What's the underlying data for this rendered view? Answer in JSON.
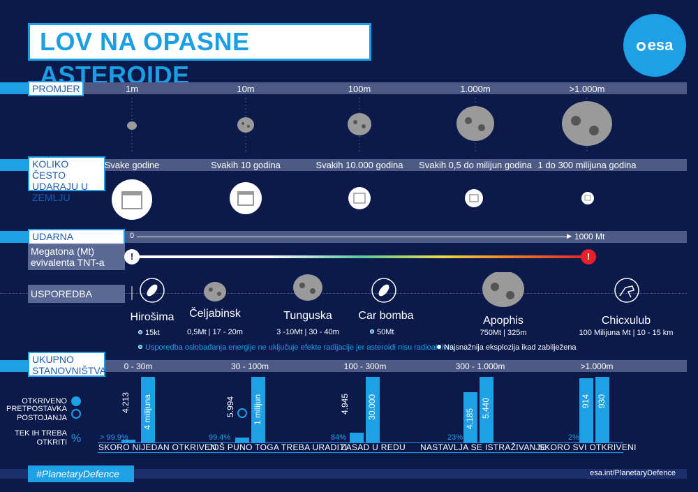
{
  "title": "LOV NA OPASNE ASTEROIDE",
  "logo": "esa",
  "promjer": {
    "label": "PROMJER",
    "sizes": [
      "1m",
      "10m",
      "100m",
      "1.000m",
      ">1.000m"
    ]
  },
  "frequency": {
    "label": "KOLIKO ČESTO UDARAJU U ZEMLJU",
    "items": [
      "Svake godine",
      "Svakih 10 godina",
      "Svakih 10.000 godina",
      "Svakih 0,5 do milijun godina",
      "1 do 300 milijuna godina"
    ]
  },
  "energy": {
    "label": "UDARNA ENERGIJA",
    "start": "0",
    "end": "1000 Mt",
    "sublabel": "Megatona (Mt) evivalenta TNT-a"
  },
  "comparison": {
    "label": "USPOREDBA",
    "items": [
      {
        "name": "Hirošima",
        "sub": "15kt",
        "dot": "blue"
      },
      {
        "name": "Čeljabinsk",
        "sub": "0,5Mt | 17 - 20m",
        "dot": ""
      },
      {
        "name": "Tunguska",
        "sub": "3 -10Mt | 30 - 40m",
        "dot": ""
      },
      {
        "name": "Car bomba",
        "sub": "50Mt",
        "dot": "blue"
      },
      {
        "name": "Apophis",
        "sub": "750Mt | 325m",
        "dot": ""
      },
      {
        "name": "Chicxulub",
        "sub": "100 Milijuna Mt | 10 - 15 km",
        "dot": ""
      }
    ],
    "note_blue": "Usporedba oslobađanja energije ne uključuje efekte radijacije jer asteroidi nisu radioaktivni",
    "note_white": "Najsnažnija eksplozija ikad zabilježena"
  },
  "population": {
    "label": "UKUPNO STANOVNIŠTVA",
    "row_labels": {
      "discovered": "OTKRIVENO",
      "estimated": "PRETPOSTAVKA POSTOJANJA",
      "remaining": "TEK IH TREBA OTKRITI",
      "pct_sign": "%"
    },
    "categories": [
      {
        "range": "0 - 30m",
        "discovered": "4.213",
        "estimated": "4 milijuna",
        "pct": "> 99.9%",
        "status": "SKORO NIJEDAN OTKRIVEN",
        "d_frac": 0.05,
        "e_frac": 1.0
      },
      {
        "range": "30 - 100m",
        "discovered": "5.994",
        "estimated": "1 milijun",
        "pct": "99.4%",
        "status": "JOŠ PUNO TOGA TREBA URADITI",
        "d_frac": 0.08,
        "e_frac": 1.0
      },
      {
        "range": "100 - 300m",
        "discovered": "4.945",
        "estimated": "30.000",
        "pct": "84%",
        "status": "ZASAD U REDU",
        "d_frac": 0.16,
        "e_frac": 1.0
      },
      {
        "range": "300 - 1.000m",
        "discovered": "4.185",
        "estimated": "5.440",
        "pct": "23%",
        "status": "NASTAVLJA SE ISTRAŽIVANJE",
        "d_frac": 0.77,
        "e_frac": 1.0
      },
      {
        "range": ">1.000m",
        "discovered": "914",
        "estimated": "930",
        "pct": "2%",
        "status": "SKORO SVI OTKRIVENI",
        "d_frac": 0.98,
        "e_frac": 1.0
      }
    ]
  },
  "footer": {
    "hashtag": "#PlanetaryDefence",
    "url": "esa.int/PlanetaryDefence"
  },
  "colors": {
    "background": "#0b1a4a",
    "accent": "#1ea0e6",
    "grey_bar": "#4d5a85"
  }
}
